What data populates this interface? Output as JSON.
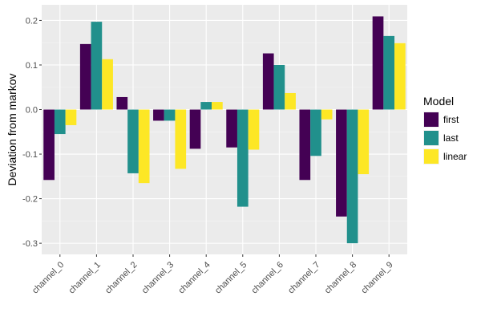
{
  "chart_data": {
    "type": "bar",
    "ylabel": "Deviation from markov",
    "xlabel": "",
    "ylim": [
      -0.325,
      0.235
    ],
    "yticks": [
      -0.3,
      -0.2,
      -0.1,
      0.0,
      0.1,
      0.2
    ],
    "ytick_labels": [
      "-0.3",
      "-0.2",
      "-0.1",
      "0.0",
      "0.1",
      "0.2"
    ],
    "grid": true,
    "legend_title": "Model",
    "legend_position": "right",
    "categories": [
      "channel_0",
      "channel_1",
      "channel_2",
      "channel_3",
      "channel_4",
      "channel_5",
      "channel_6",
      "channel_7",
      "channel_8",
      "channel_9"
    ],
    "series": [
      {
        "name": "first",
        "color": "#440154",
        "values": [
          -0.158,
          0.147,
          0.028,
          -0.025,
          -0.088,
          -0.085,
          0.126,
          -0.158,
          -0.24,
          0.209
        ]
      },
      {
        "name": "last",
        "color": "#21908C",
        "values": [
          -0.055,
          0.197,
          -0.143,
          -0.025,
          0.017,
          -0.218,
          0.1,
          -0.104,
          -0.3,
          0.165
        ]
      },
      {
        "name": "linear",
        "color": "#FDE725",
        "values": [
          -0.035,
          0.113,
          -0.165,
          -0.133,
          0.017,
          -0.09,
          0.037,
          -0.022,
          -0.145,
          0.149
        ]
      }
    ]
  }
}
